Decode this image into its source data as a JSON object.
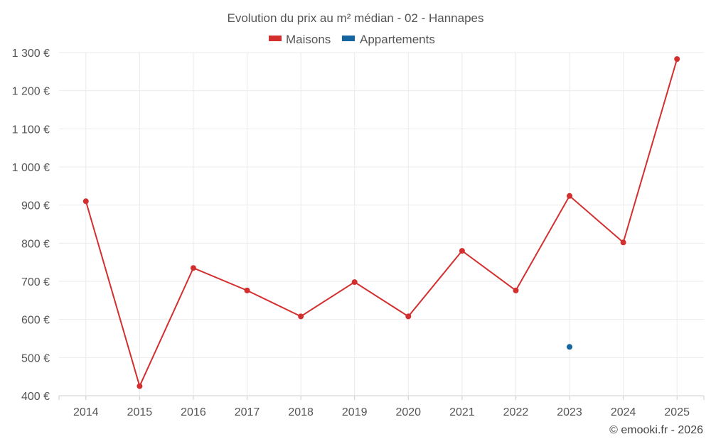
{
  "chart_data": {
    "type": "line",
    "title": "Evolution du prix au m² médian - 02 - Hannapes",
    "categories": [
      "2014",
      "2015",
      "2016",
      "2017",
      "2018",
      "2019",
      "2020",
      "2021",
      "2022",
      "2023",
      "2024",
      "2025"
    ],
    "series": [
      {
        "name": "Maisons",
        "color": "#d32f2f",
        "values": [
          910,
          425,
          735,
          676,
          608,
          698,
          608,
          780,
          676,
          924,
          802,
          1283
        ]
      },
      {
        "name": "Appartements",
        "color": "#1565a0",
        "values": [
          null,
          null,
          null,
          null,
          null,
          null,
          null,
          null,
          null,
          528,
          null,
          null
        ]
      }
    ],
    "y_ticks": [
      400,
      500,
      600,
      700,
      800,
      900,
      1000,
      1100,
      1200,
      1300
    ],
    "y_tick_labels": [
      "400 €",
      "500 €",
      "600 €",
      "700 €",
      "800 €",
      "900 €",
      "1 000 €",
      "1 100 €",
      "1 200 €",
      "1 300 €"
    ],
    "ylim": [
      400,
      1300
    ],
    "legend_position": "top-center",
    "grid": true,
    "xlabel": "",
    "ylabel": ""
  },
  "credit": "© emooki.fr - 2026"
}
